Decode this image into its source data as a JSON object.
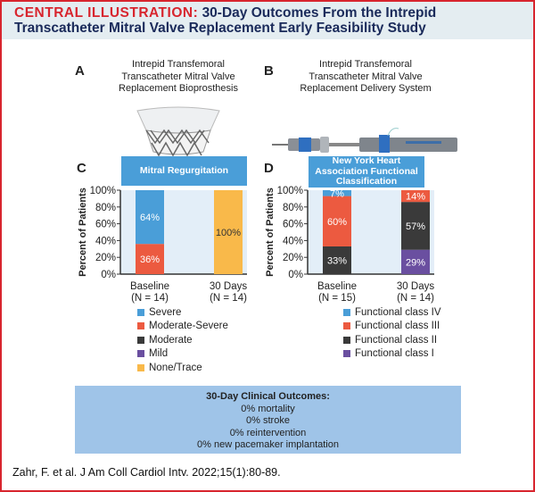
{
  "title": {
    "prefix": "CENTRAL ILLUSTRATION:",
    "line1": "30-Day Outcomes From the Intrepid",
    "line2": "Transcatheter Mitral Valve Replacement Early Feasibility Study"
  },
  "panelA": {
    "letter": "A",
    "lines": [
      "Intrepid Transfemoral",
      "Transcatheter Mitral Valve",
      "Replacement Bioprosthesis"
    ]
  },
  "panelB": {
    "letter": "B",
    "lines": [
      "Intrepid Transfemoral",
      "Transcatheter Mitral Valve",
      "Replacement Delivery System"
    ]
  },
  "chart_data": [
    {
      "panel": "C",
      "type": "bar",
      "stacked": true,
      "title": "Mitral Regurgitation",
      "ylabel": "Percent of Patients",
      "ylim": [
        0,
        100
      ],
      "yticks": [
        "0%",
        "20%",
        "40%",
        "60%",
        "80%",
        "100%"
      ],
      "categories": [
        [
          "Baseline",
          "(N = 14)"
        ],
        [
          "30 Days",
          "(N = 14)"
        ]
      ],
      "series": [
        {
          "name": "None/Trace",
          "color": "#f9b94a",
          "values": [
            0,
            100
          ]
        },
        {
          "name": "Mild",
          "color": "#6a4fa0",
          "values": [
            0,
            0
          ]
        },
        {
          "name": "Moderate",
          "color": "#3a3a3a",
          "values": [
            0,
            0
          ]
        },
        {
          "name": "Moderate-Severe",
          "color": "#ec5a40",
          "values": [
            36,
            0
          ]
        },
        {
          "name": "Severe",
          "color": "#4a9ed8",
          "values": [
            64,
            0
          ]
        }
      ],
      "legend": [
        "Severe",
        "Moderate-Severe",
        "Moderate",
        "Mild",
        "None/Trace"
      ],
      "legend_placement": "bottom",
      "grid": false
    },
    {
      "panel": "D",
      "type": "bar",
      "stacked": true,
      "title": "New York Heart Association Functional Classification",
      "title_lines": [
        "New York Heart",
        "Association Functional",
        "Classification"
      ],
      "ylabel": "Percent of Patients",
      "ylim": [
        0,
        100
      ],
      "yticks": [
        "0%",
        "20%",
        "40%",
        "60%",
        "80%",
        "100%"
      ],
      "categories": [
        [
          "Baseline",
          "(N = 15)"
        ],
        [
          "30 Days",
          "(N = 14)"
        ]
      ],
      "series": [
        {
          "name": "Functional class I",
          "color": "#6a4fa0",
          "values": [
            0,
            29
          ]
        },
        {
          "name": "Functional class II",
          "color": "#3a3a3a",
          "values": [
            33,
            57
          ]
        },
        {
          "name": "Functional class III",
          "color": "#ec5a40",
          "values": [
            60,
            14
          ]
        },
        {
          "name": "Functional class IV",
          "color": "#4a9ed8",
          "values": [
            7,
            0
          ]
        }
      ],
      "legend": [
        "Functional class IV",
        "Functional class III",
        "Functional class II",
        "Functional class I"
      ],
      "legend_placement": "bottom",
      "grid": false
    }
  ],
  "outcomes": {
    "title": "30-Day Clinical Outcomes:",
    "items": [
      "0% mortality",
      "0% stroke",
      "0% reintervention",
      "0% new pacemaker implantation"
    ]
  },
  "citation": "Zahr, F. et al. J Am Coll Cardiol Intv. 2022;15(1):80-89."
}
